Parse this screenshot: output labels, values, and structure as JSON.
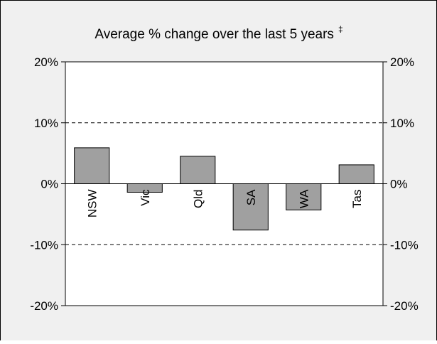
{
  "chart_data": {
    "type": "bar",
    "title": "Average % change over the last 5 years",
    "title_marker": "‡",
    "categories": [
      "NSW",
      "Vic",
      "Qld",
      "SA",
      "WA",
      "Tas"
    ],
    "values": [
      5.9,
      -1.4,
      4.5,
      -7.6,
      -4.3,
      3.1
    ],
    "unit": "%",
    "ylim": [
      -20,
      20
    ],
    "yticks": [
      {
        "value": 20,
        "label": "20%"
      },
      {
        "value": 10,
        "label": "10%"
      },
      {
        "value": 0,
        "label": "0%"
      },
      {
        "value": -10,
        "label": "-10%"
      },
      {
        "value": -20,
        "label": "-20%"
      }
    ],
    "grid": true,
    "grid_style": "dashed",
    "legend": "none",
    "colors": {
      "bar_fill": "#a0a0a0",
      "bar_stroke": "#000000",
      "background": "#f0f0f0",
      "plot_background": "#ffffff",
      "grid": "#000000"
    }
  }
}
